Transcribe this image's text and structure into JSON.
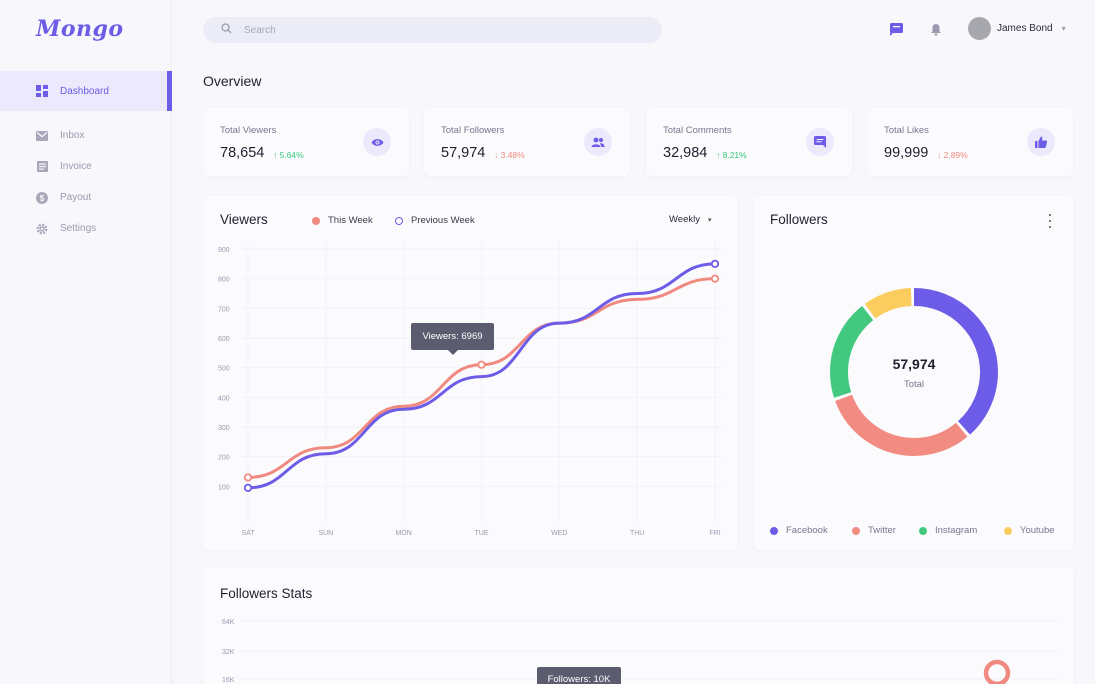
{
  "app": {
    "logo": "Mongo"
  },
  "sidebar": {
    "items": [
      {
        "label": "Dashboard",
        "icon": "dashboard-icon",
        "active": true
      },
      {
        "label": "Inbox",
        "icon": "mail-icon"
      },
      {
        "label": "Invoice",
        "icon": "invoice-icon"
      },
      {
        "label": "Payout",
        "icon": "dollar-icon"
      },
      {
        "label": "Settings",
        "icon": "gear-icon"
      }
    ]
  },
  "header": {
    "search_placeholder": "Search",
    "user_name": "James Bond",
    "caret": "▾"
  },
  "overview": {
    "title": "Overview",
    "cards": [
      {
        "label": "Total Viewers",
        "value": "78,654",
        "change": "↑ 5.64%",
        "trend": "up",
        "icon": "eye-icon"
      },
      {
        "label": "Total Followers",
        "value": "57,974",
        "change": "↓ 3.48%",
        "trend": "down",
        "icon": "users-icon"
      },
      {
        "label": "Total Comments",
        "value": "32,984",
        "change": "↑ 8.21%",
        "trend": "up",
        "icon": "comment-icon"
      },
      {
        "label": "Total Likes",
        "value": "99,999",
        "change": "↓ 2.89%",
        "trend": "down",
        "icon": "thumbs-up-icon"
      }
    ]
  },
  "viewers": {
    "title": "Viewers",
    "legend": [
      "This Week",
      "Previous Week"
    ],
    "period": "Weekly",
    "caret": "▾",
    "tooltip": "Viewers: 6969"
  },
  "followers": {
    "title": "Followers",
    "total_value": "57,974",
    "total_label": "Total",
    "legend": [
      "Facebook",
      "Twitter",
      "Instagram",
      "Youtube"
    ]
  },
  "followers_stats": {
    "title": "Followers Stats",
    "tooltip": "Followers: 10K"
  },
  "colors": {
    "accent": "#6c5ce7",
    "this_week": "#f08a80",
    "previous_week": "#6c5ce7",
    "facebook": "#6c5ce7",
    "twitter": "#f28b82",
    "instagram": "#43c97f",
    "youtube": "#fbcd5e"
  },
  "chart_data": [
    {
      "type": "line",
      "title": "Viewers",
      "categories": [
        "SAT",
        "SUN",
        "MON",
        "TUE",
        "WED",
        "THU",
        "FRI"
      ],
      "ylim": [
        0,
        900
      ],
      "yticks": [
        100,
        200,
        300,
        400,
        500,
        600,
        700,
        800,
        900
      ],
      "grid": true,
      "series": [
        {
          "name": "This Week",
          "values": [
            130,
            230,
            370,
            510,
            650,
            730,
            800
          ]
        },
        {
          "name": "Previous Week",
          "values": [
            95,
            210,
            360,
            470,
            650,
            750,
            850
          ]
        }
      ]
    },
    {
      "type": "pie",
      "title": "Followers",
      "labels": [
        "Facebook",
        "Twitter",
        "Instagram",
        "Youtube"
      ],
      "values": [
        39,
        31,
        20,
        10
      ]
    },
    {
      "type": "line",
      "title": "Followers Stats",
      "yticks": [
        "64K",
        "32K",
        "16K"
      ],
      "series": []
    }
  ]
}
